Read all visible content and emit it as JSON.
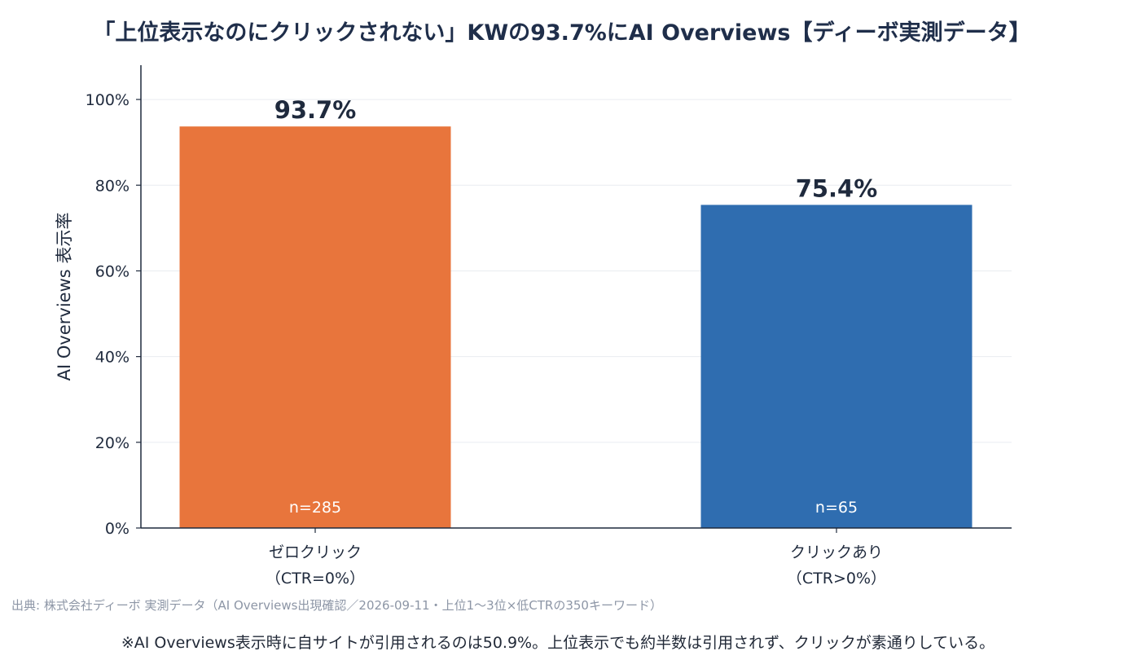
{
  "title": "「上位表示なのにクリックされない」KWの93.7%にAI Overviews【ディーボ実測データ】",
  "chart_data": {
    "type": "bar",
    "title": "「上位表示なのにクリックされない」KWの93.7%にAI Overviews【ディーボ実測データ】",
    "ylabel": "AI Overviews 表示率",
    "xlabel": "",
    "ylim": [
      0,
      108
    ],
    "yticks": [
      0,
      20,
      40,
      60,
      80,
      100
    ],
    "ytick_labels": [
      "0%",
      "20%",
      "40%",
      "60%",
      "80%",
      "100%"
    ],
    "grid": "horizontal",
    "categories": [
      {
        "line1": "ゼロクリック",
        "line2": "（CTR=0%）"
      },
      {
        "line1": "クリックあり",
        "line2": "（CTR>0%）"
      }
    ],
    "values": [
      93.7,
      75.4
    ],
    "value_labels": [
      "93.7%",
      "75.4%"
    ],
    "sample_labels": [
      "n=285",
      "n=65"
    ],
    "colors": [
      "#e8753c",
      "#2f6db0"
    ]
  },
  "source": "出典: 株式会社ディーボ 実測データ（AI Overviews出現確認／2026-09-11・上位1〜3位×低CTRの350キーワード）",
  "footnote": "※AI Overviews表示時に自サイトが引用されるのは50.9%。上位表示でも約半数は引用されず、クリックが素通りしている。"
}
